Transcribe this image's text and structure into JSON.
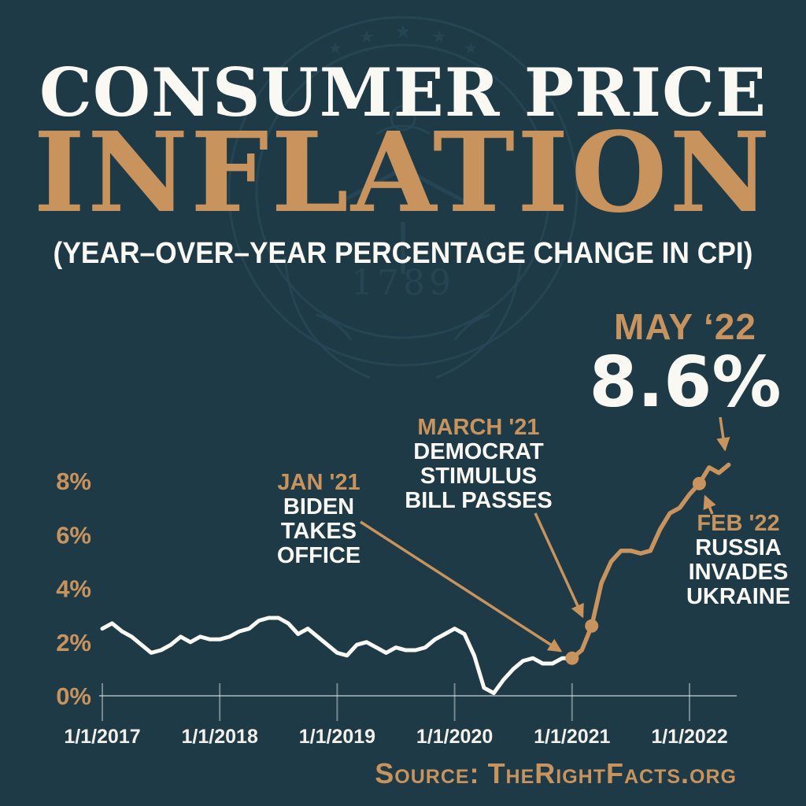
{
  "page": {
    "background_color": "#1e3a46",
    "accent_color": "#c8935c",
    "text_color": "#faf8f2"
  },
  "header": {
    "title_line1": "CONSUMER PRICE",
    "title_line2": "INFLATION",
    "subtitle": "(YEAR–OVER–YEAR PERCENTAGE CHANGE IN CPI)"
  },
  "watermark": {
    "year": "1789",
    "star": "★"
  },
  "callouts": {
    "may22": {
      "label": "MAY ‘22",
      "value": "8.6%"
    },
    "mar21": {
      "label": "MARCH '21",
      "lines": [
        "DEMOCRAT",
        "STIMULUS",
        "BILL PASSES"
      ]
    },
    "jan21": {
      "label": "JAN '21",
      "lines": [
        "BIDEN",
        "TAKES",
        "OFFICE"
      ]
    },
    "feb22": {
      "label": "FEB '22",
      "lines": [
        "RUSSIA",
        "INVADES",
        "UKRAINE"
      ]
    }
  },
  "source": {
    "prefix": "Source:",
    "name": "TheRightFacts.org"
  },
  "chart_data": {
    "type": "line",
    "title": "Consumer Price Inflation",
    "subtitle": "Year-over-year percentage change in CPI",
    "xlabel": "",
    "ylabel": "",
    "x_unit": "month",
    "x_start": "1/1/2017",
    "x_end": "5/1/2022",
    "x_tick_labels": [
      "1/1/2017",
      "1/1/2018",
      "1/1/2019",
      "1/1/2020",
      "1/1/2021",
      "1/1/2022"
    ],
    "y_ticks": [
      0,
      2,
      4,
      6,
      8
    ],
    "y_tick_suffix": "%",
    "ylim": [
      0,
      9.2
    ],
    "grid": false,
    "values_monthly": [
      2.5,
      2.7,
      2.4,
      2.2,
      1.9,
      1.6,
      1.7,
      1.9,
      2.2,
      2.0,
      2.2,
      2.1,
      2.1,
      2.2,
      2.4,
      2.5,
      2.8,
      2.9,
      2.9,
      2.7,
      2.3,
      2.5,
      2.2,
      1.9,
      1.6,
      1.5,
      1.9,
      2.0,
      1.8,
      1.6,
      1.8,
      1.7,
      1.7,
      1.8,
      2.1,
      2.3,
      2.5,
      2.3,
      1.5,
      0.3,
      0.1,
      0.6,
      1.0,
      1.3,
      1.4,
      1.2,
      1.2,
      1.4,
      1.4,
      1.7,
      2.6,
      4.2,
      5.0,
      5.4,
      5.4,
      5.3,
      5.4,
      6.2,
      6.8,
      7.0,
      7.5,
      7.9,
      8.5,
      8.3,
      8.6
    ],
    "segment_split_month": 48,
    "segment_colors": {
      "before": "#faf8f2",
      "after": "#c8935c"
    },
    "marked_points": [
      {
        "month_index": 48,
        "date": "1/2021",
        "value": 1.4,
        "dot": true,
        "label": "JAN '21 — BIDEN TAKES OFFICE"
      },
      {
        "month_index": 50,
        "date": "3/2021",
        "value": 2.6,
        "dot": true,
        "label": "MARCH '21 — DEMOCRAT STIMULUS BILL PASSES"
      },
      {
        "month_index": 61,
        "date": "2/2022",
        "value": 7.9,
        "dot": true,
        "label": "FEB '22 — RUSSIA INVADES UKRAINE"
      },
      {
        "month_index": 64,
        "date": "5/2022",
        "value": 8.6,
        "dot": false,
        "label": "MAY '22 — 8.6%"
      }
    ]
  }
}
